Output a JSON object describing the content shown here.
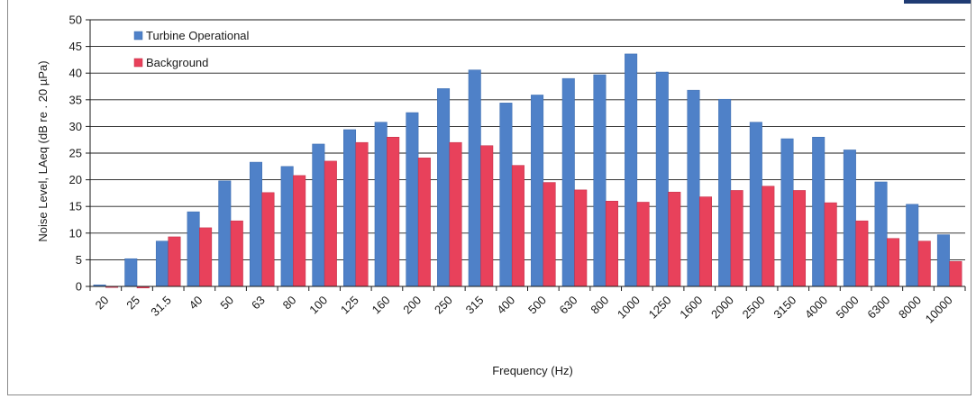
{
  "chart_data": {
    "type": "bar",
    "title": "",
    "xlabel": "Frequency (Hz)",
    "ylabel": "Noise Level, LAeq (dB re . 20 µPa)",
    "ylim": [
      0,
      50
    ],
    "yticks": [
      0,
      5,
      10,
      15,
      20,
      25,
      30,
      35,
      40,
      45,
      50
    ],
    "grid": "horizontal",
    "legend_position": "top-left",
    "categories": [
      "20",
      "25",
      "31.5",
      "40",
      "50",
      "63",
      "80",
      "100",
      "125",
      "160",
      "200",
      "250",
      "315",
      "400",
      "500",
      "630",
      "800",
      "1000",
      "1250",
      "1600",
      "2000",
      "2500",
      "3150",
      "4000",
      "5000",
      "6300",
      "8000",
      "10000"
    ],
    "series": [
      {
        "name": "Turbine Operational",
        "color": "#4f81c8",
        "values": [
          0.3,
          5.2,
          8.5,
          14.0,
          19.8,
          23.3,
          22.5,
          26.7,
          29.4,
          30.8,
          32.6,
          37.1,
          40.6,
          34.4,
          35.9,
          39.0,
          39.7,
          43.6,
          40.2,
          36.8,
          35.1,
          30.8,
          27.7,
          28.0,
          25.6,
          19.6,
          15.4,
          9.7
        ]
      },
      {
        "name": "Background",
        "color": "#e8415b",
        "values": [
          -0.2,
          -0.3,
          9.3,
          11.0,
          12.3,
          17.6,
          20.8,
          23.5,
          27.0,
          28.0,
          24.1,
          27.0,
          26.4,
          22.7,
          19.5,
          18.1,
          16.0,
          15.8,
          17.7,
          16.8,
          18.0,
          18.8,
          18.0,
          15.7,
          12.3,
          9.0,
          8.5,
          4.7
        ]
      }
    ]
  }
}
